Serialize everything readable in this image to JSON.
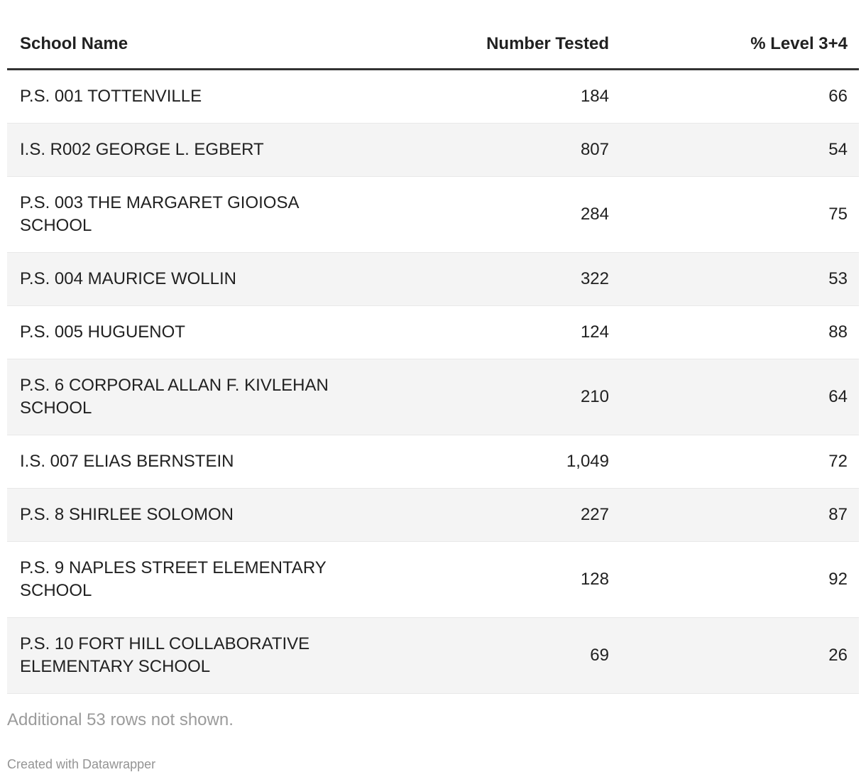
{
  "table": {
    "columns": [
      {
        "label": "School Name",
        "align": "left"
      },
      {
        "label": "Number Tested",
        "align": "right"
      },
      {
        "label": "% Level 3+4",
        "align": "right"
      }
    ],
    "rows": [
      {
        "school": "P.S. 001 TOTTENVILLE",
        "tested": "184",
        "level": "66"
      },
      {
        "school": "I.S. R002 GEORGE L. EGBERT",
        "tested": "807",
        "level": "54"
      },
      {
        "school": "P.S. 003 THE MARGARET GIOIOSA SCHOOL",
        "tested": "284",
        "level": "75"
      },
      {
        "school": "P.S. 004 MAURICE WOLLIN",
        "tested": "322",
        "level": "53"
      },
      {
        "school": "P.S. 005 HUGUENOT",
        "tested": "124",
        "level": "88"
      },
      {
        "school": "P.S. 6 CORPORAL ALLAN F. KIVLEHAN SCHOOL",
        "tested": "210",
        "level": "64"
      },
      {
        "school": "I.S. 007 ELIAS BERNSTEIN",
        "tested": "1,049",
        "level": "72"
      },
      {
        "school": "P.S. 8 SHIRLEE SOLOMON",
        "tested": "227",
        "level": "87"
      },
      {
        "school": "P.S. 9 NAPLES STREET ELEMENTARY SCHOOL",
        "tested": "128",
        "level": "92"
      },
      {
        "school": "P.S. 10 FORT HILL COLLABORATIVE ELEMENTARY SCHOOL",
        "tested": "69",
        "level": "26"
      }
    ]
  },
  "footer": {
    "note": "Additional 53 rows not shown.",
    "attribution": "Created with Datawrapper"
  },
  "colors": {
    "text": "#212121",
    "stripe": "#f4f4f4",
    "header_rule": "#333333",
    "row_border": "#e8e8e8",
    "note_gray": "#9b9b9b",
    "attribution_gray": "#949494"
  },
  "chart_data": {
    "type": "table",
    "columns": [
      "School Name",
      "Number Tested",
      "% Level 3+4"
    ],
    "rows": [
      [
        "P.S. 001 TOTTENVILLE",
        184,
        66
      ],
      [
        "I.S. R002 GEORGE L. EGBERT",
        807,
        54
      ],
      [
        "P.S. 003 THE MARGARET GIOIOSA SCHOOL",
        284,
        75
      ],
      [
        "P.S. 004 MAURICE WOLLIN",
        322,
        53
      ],
      [
        "P.S. 005 HUGUENOT",
        124,
        88
      ],
      [
        "P.S. 6 CORPORAL ALLAN F. KIVLEHAN SCHOOL",
        210,
        64
      ],
      [
        "I.S. 007 ELIAS BERNSTEIN",
        1049,
        72
      ],
      [
        "P.S. 8 SHIRLEE SOLOMON",
        227,
        87
      ],
      [
        "P.S. 9 NAPLES STREET ELEMENTARY SCHOOL",
        128,
        92
      ],
      [
        "P.S. 10 FORT HILL COLLABORATIVE ELEMENTARY SCHOOL",
        69,
        26
      ]
    ],
    "note": "Additional 53 rows not shown.",
    "layout_hints": {
      "striped": true,
      "header_rule": true,
      "numeric_columns_right_aligned": true
    }
  }
}
